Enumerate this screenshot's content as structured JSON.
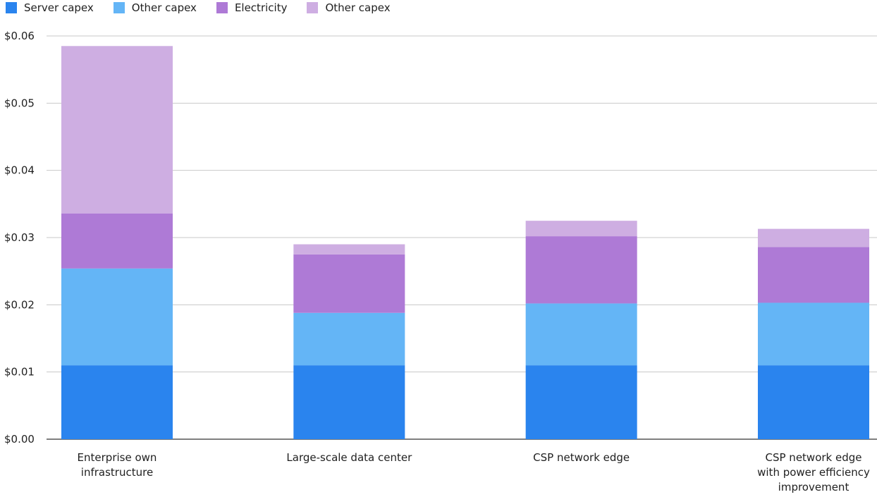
{
  "chart_data": {
    "type": "bar",
    "stacked": true,
    "categories": [
      [
        "Enterprise own",
        "infrastructure"
      ],
      [
        "Large-scale data center"
      ],
      [
        "CSP network edge"
      ],
      [
        "CSP network edge",
        "with power efficiency",
        "improvement"
      ]
    ],
    "series": [
      {
        "name": "Server capex",
        "color": "#2a84ee",
        "values": [
          0.011,
          0.011,
          0.011,
          0.011
        ]
      },
      {
        "name": "Other capex",
        "color": "#64b5f6",
        "values": [
          0.0144,
          0.0078,
          0.0092,
          0.0093
        ]
      },
      {
        "name": "Electricity",
        "color": "#ae7ad6",
        "values": [
          0.0082,
          0.0087,
          0.01,
          0.0083
        ]
      },
      {
        "name": "Other capex",
        "color": "#ceaee2",
        "values": [
          0.0249,
          0.0015,
          0.0023,
          0.0027
        ]
      }
    ],
    "yticks": [
      "$0.00",
      "$0.01",
      "$0.02",
      "$0.03",
      "$0.04",
      "$0.05",
      "$0.06"
    ],
    "ylim": [
      0,
      0.06
    ],
    "grid": true,
    "legend_position": "top-left"
  }
}
